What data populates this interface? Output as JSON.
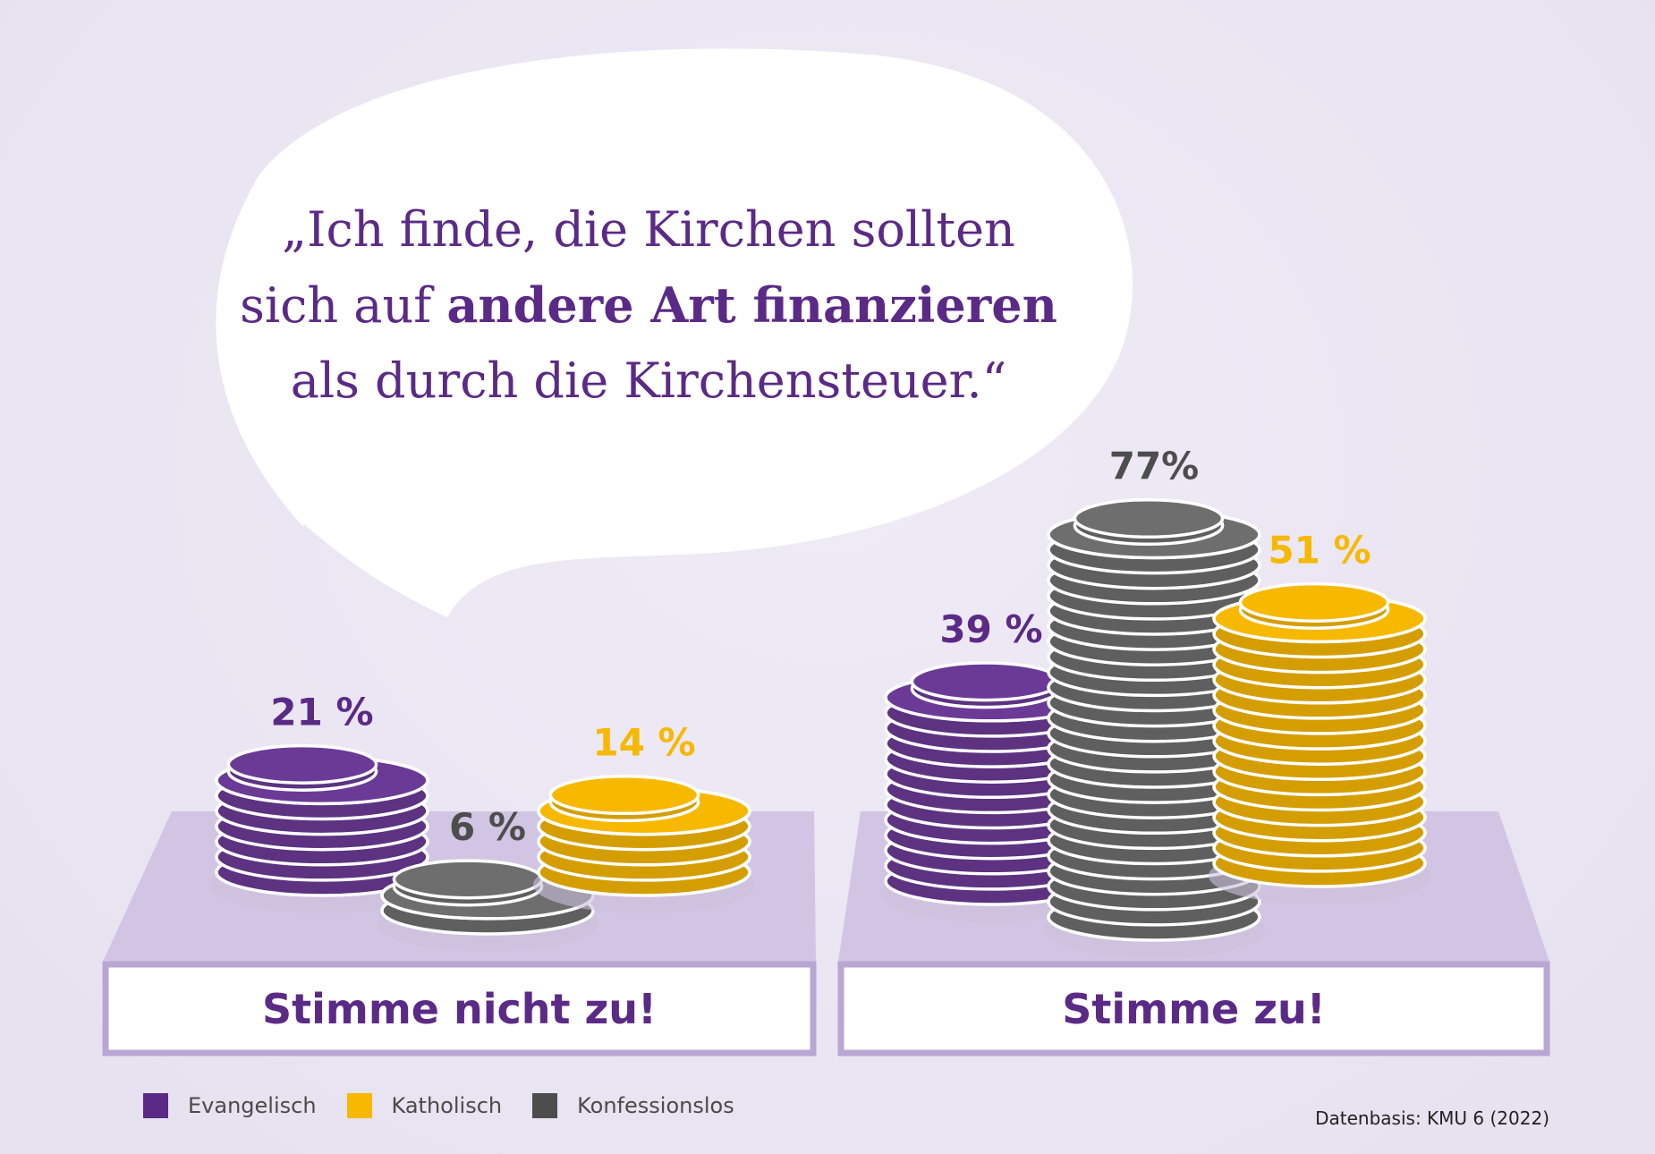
{
  "quote": {
    "line1": "„Ich finde, die Kirchen sollten",
    "line2_pre": "sich auf ",
    "line2_bold": "andere Art finanzieren",
    "line3": "als durch die Kirchensteuer.“"
  },
  "chart_data": {
    "type": "bar",
    "categories": [
      "Stimme nicht zu!",
      "Stimme zu!"
    ],
    "series": [
      {
        "name": "Evangelisch",
        "values": [
          21,
          39
        ],
        "labels": [
          "21 %",
          "39 %"
        ],
        "color": "#6b3a96"
      },
      {
        "name": "Konfessionslos",
        "values": [
          6,
          77
        ],
        "labels": [
          "6 %",
          "77%"
        ],
        "color": "#6e6e6e"
      },
      {
        "name": "Katholisch",
        "values": [
          14,
          51
        ],
        "labels": [
          "14 %",
          "51 %"
        ],
        "color": "#f7b800"
      }
    ],
    "legend": [
      {
        "name": "Evangelisch",
        "color": "#5b2a86"
      },
      {
        "name": "Katholisch",
        "color": "#f7b800"
      },
      {
        "name": "Konfessionslos",
        "color": "#4d4d4d"
      }
    ],
    "legend_position": "bottom-left",
    "grid": false
  },
  "source": "Datenbasis: KMU 6 (2022)",
  "colors": {
    "accent": "#5b2a86",
    "platform": "#d1c5e3",
    "platform_border": "#b8a6d3"
  }
}
